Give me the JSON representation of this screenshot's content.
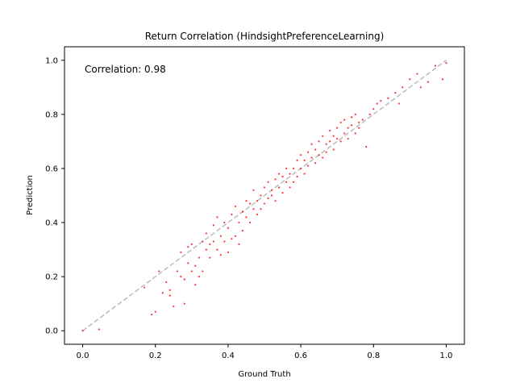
{
  "chart_data": {
    "type": "scatter",
    "title": "Return Correlation (HindsightPreferenceLearning)",
    "xlabel": "Ground Truth",
    "ylabel": "Prediction",
    "annotation": "Correlation: 0.98",
    "xlim": [
      -0.05,
      1.05
    ],
    "ylim": [
      -0.05,
      1.05
    ],
    "xticks": [
      0.0,
      0.2,
      0.4,
      0.6,
      0.8,
      1.0
    ],
    "yticks": [
      0.0,
      0.2,
      0.4,
      0.6,
      0.8,
      1.0
    ],
    "xtick_labels": [
      "0.0",
      "0.2",
      "0.4",
      "0.6",
      "0.8",
      "1.0"
    ],
    "ytick_labels": [
      "0.0",
      "0.2",
      "0.4",
      "0.6",
      "0.8",
      "1.0"
    ],
    "grid": false,
    "colors": {
      "points": "#ff0000",
      "reference_line": "#bbbbbb"
    },
    "reference_line": {
      "x": [
        0.0,
        1.0
      ],
      "y": [
        0.0,
        1.0
      ],
      "style": "dashed"
    },
    "series": [
      {
        "x": [
          0.0,
          0.045,
          0.17,
          0.19,
          0.2,
          0.21,
          0.22,
          0.23,
          0.24,
          0.24,
          0.25,
          0.26,
          0.27,
          0.27,
          0.28,
          0.28,
          0.29,
          0.29,
          0.3,
          0.3,
          0.31,
          0.31,
          0.32,
          0.32,
          0.33,
          0.33,
          0.34,
          0.34,
          0.35,
          0.35,
          0.36,
          0.36,
          0.37,
          0.37,
          0.38,
          0.38,
          0.39,
          0.39,
          0.4,
          0.4,
          0.41,
          0.41,
          0.42,
          0.42,
          0.43,
          0.43,
          0.44,
          0.44,
          0.45,
          0.45,
          0.46,
          0.46,
          0.47,
          0.47,
          0.48,
          0.48,
          0.49,
          0.49,
          0.5,
          0.5,
          0.51,
          0.51,
          0.52,
          0.52,
          0.53,
          0.53,
          0.54,
          0.54,
          0.55,
          0.55,
          0.56,
          0.56,
          0.57,
          0.57,
          0.58,
          0.58,
          0.59,
          0.59,
          0.6,
          0.6,
          0.61,
          0.61,
          0.62,
          0.62,
          0.63,
          0.63,
          0.64,
          0.64,
          0.65,
          0.65,
          0.66,
          0.66,
          0.67,
          0.67,
          0.68,
          0.68,
          0.69,
          0.69,
          0.7,
          0.7,
          0.71,
          0.71,
          0.72,
          0.72,
          0.73,
          0.73,
          0.74,
          0.74,
          0.75,
          0.75,
          0.76,
          0.76,
          0.77,
          0.78,
          0.79,
          0.8,
          0.81,
          0.82,
          0.84,
          0.86,
          0.87,
          0.88,
          0.9,
          0.92,
          0.93,
          0.95,
          0.97,
          0.99,
          1.0
        ],
        "y": [
          0.0,
          0.005,
          0.16,
          0.06,
          0.07,
          0.22,
          0.14,
          0.18,
          0.13,
          0.15,
          0.09,
          0.22,
          0.2,
          0.29,
          0.1,
          0.19,
          0.25,
          0.31,
          0.22,
          0.32,
          0.17,
          0.24,
          0.2,
          0.27,
          0.33,
          0.22,
          0.3,
          0.36,
          0.32,
          0.27,
          0.33,
          0.39,
          0.3,
          0.42,
          0.35,
          0.28,
          0.4,
          0.33,
          0.38,
          0.29,
          0.34,
          0.43,
          0.46,
          0.35,
          0.32,
          0.4,
          0.44,
          0.37,
          0.48,
          0.42,
          0.47,
          0.4,
          0.45,
          0.52,
          0.43,
          0.48,
          0.5,
          0.45,
          0.53,
          0.47,
          0.49,
          0.55,
          0.52,
          0.5,
          0.48,
          0.56,
          0.53,
          0.58,
          0.51,
          0.57,
          0.55,
          0.6,
          0.53,
          0.58,
          0.6,
          0.55,
          0.63,
          0.57,
          0.6,
          0.65,
          0.58,
          0.63,
          0.66,
          0.61,
          0.64,
          0.69,
          0.62,
          0.67,
          0.7,
          0.65,
          0.64,
          0.72,
          0.69,
          0.66,
          0.74,
          0.7,
          0.67,
          0.72,
          0.75,
          0.71,
          0.7,
          0.77,
          0.73,
          0.78,
          0.75,
          0.71,
          0.79,
          0.76,
          0.73,
          0.8,
          0.77,
          0.75,
          0.78,
          0.68,
          0.8,
          0.82,
          0.84,
          0.85,
          0.86,
          0.88,
          0.84,
          0.9,
          0.93,
          0.95,
          0.9,
          0.92,
          0.98,
          0.93,
          0.99
        ]
      }
    ]
  }
}
